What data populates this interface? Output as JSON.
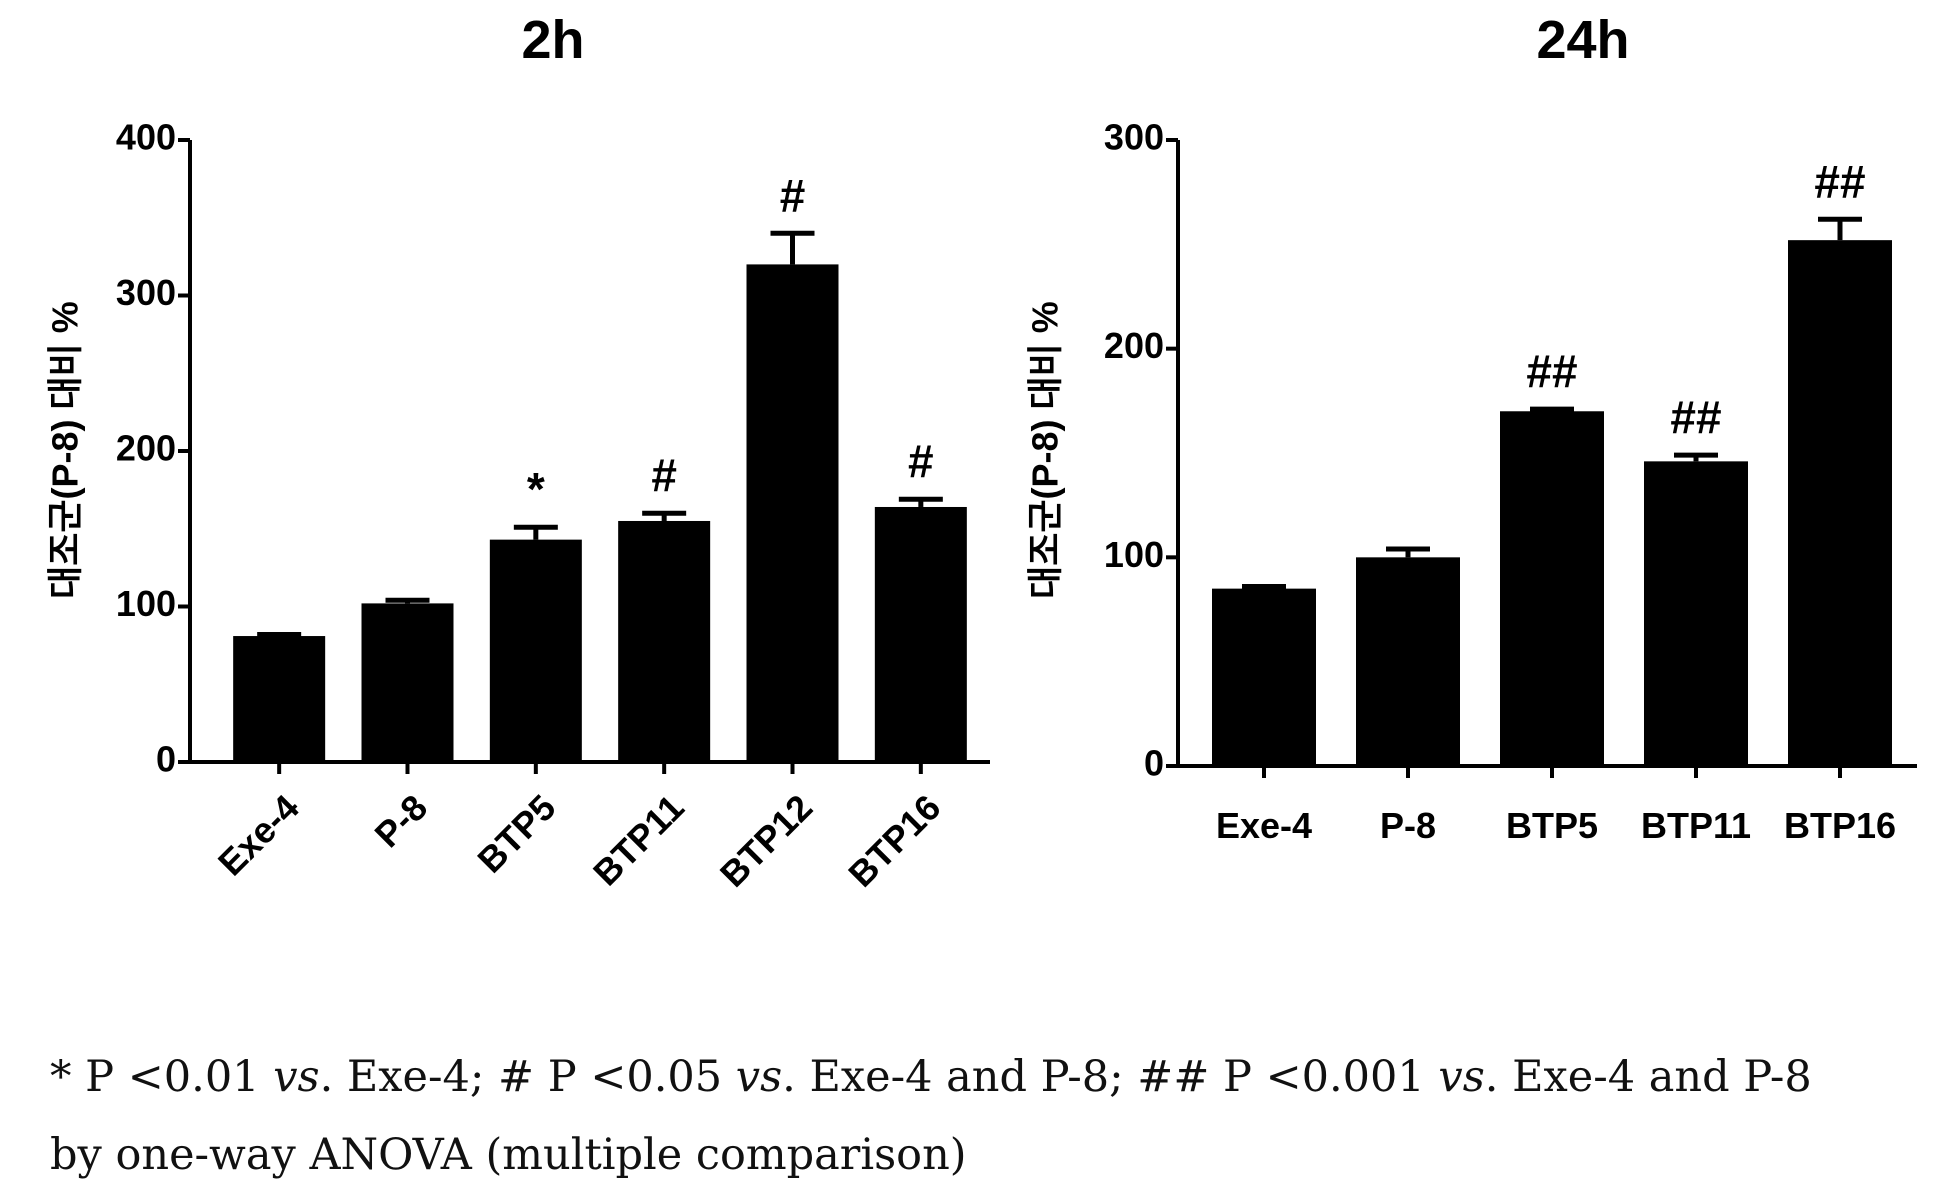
{
  "chart_data": [
    {
      "type": "bar",
      "title": "2h",
      "ylabel": "대조군(P-8) 대비 %",
      "xlabel": "",
      "categories": [
        "Exe-4",
        "P-8",
        "BTP5",
        "BTP11",
        "BTP12",
        "BTP16"
      ],
      "values": [
        81,
        102,
        143,
        155,
        320,
        164
      ],
      "errors": [
        1,
        2,
        8,
        5,
        20,
        5
      ],
      "annotations": [
        "",
        "",
        "*",
        "#",
        "#",
        "#"
      ],
      "ylim": [
        0,
        400
      ],
      "yticks": [
        0,
        100,
        200,
        300,
        400
      ],
      "grid": false,
      "bar_color": "#000000"
    },
    {
      "type": "bar",
      "title": "24h",
      "ylabel": "대조군(P-8) 대비 %",
      "xlabel": "",
      "categories": [
        "Exe-4",
        "P-8",
        "BTP5",
        "BTP11",
        "BTP16"
      ],
      "values": [
        85,
        100,
        170,
        146,
        252
      ],
      "errors": [
        1,
        4,
        1,
        3,
        10
      ],
      "annotations": [
        "",
        "",
        "##",
        "##",
        "##"
      ],
      "ylim": [
        0,
        300
      ],
      "yticks": [
        0,
        100,
        200,
        300
      ],
      "grid": false,
      "bar_color": "#000000"
    }
  ],
  "footnote": {
    "line1": {
      "s1": "* P <0.01 ",
      "vs1": "vs",
      "s2": ". Exe-4; # P <0.05 ",
      "vs2": "vs",
      "s3": ". Exe-4 and P-8; ## P <0.001 ",
      "vs3": "vs",
      "s4": ". Exe-4 and P-8"
    },
    "line2": "by one-way ANOVA (multiple comparison)"
  }
}
